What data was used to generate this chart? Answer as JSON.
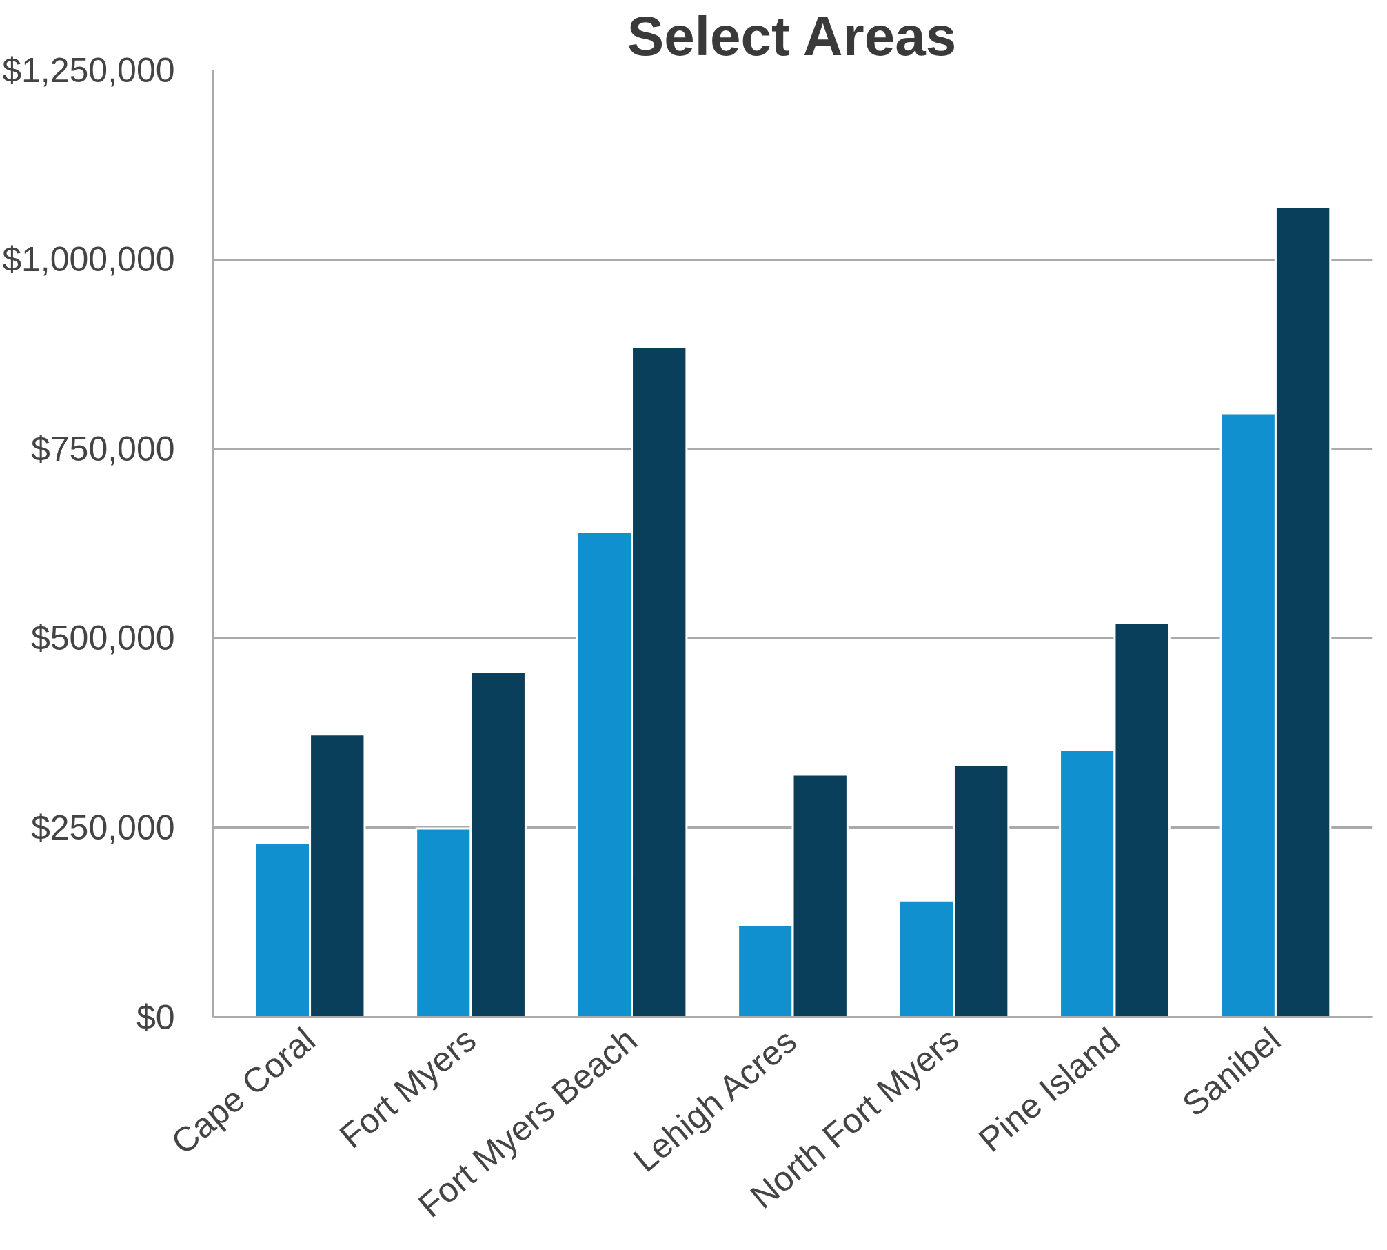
{
  "chart_data": {
    "type": "bar",
    "title": "Select Areas",
    "categories": [
      "Cape Coral",
      "Fort Myers",
      "Fort Myers Beach",
      "Lehigh Acres",
      "North Fort Myers",
      "Pine Island",
      "Sanibel"
    ],
    "series": [
      {
        "color": "#1190d0",
        "values": [
          230000,
          249000,
          641000,
          122000,
          154000,
          353000,
          797000
        ]
      },
      {
        "color": "#0a3f5c",
        "values": [
          373000,
          456000,
          885000,
          320000,
          333000,
          520000,
          1069000
        ]
      }
    ],
    "ylim": [
      0,
      1250000
    ],
    "yticks": [
      {
        "value": 0,
        "label": "$0"
      },
      {
        "value": 250000,
        "label": "$250,000"
      },
      {
        "value": 500000,
        "label": "$500,000"
      },
      {
        "value": 750000,
        "label": "$750,000"
      },
      {
        "value": 1000000,
        "label": "$1,000,000"
      },
      {
        "value": 1250000,
        "label": "$1,250,000"
      }
    ],
    "grid": "y"
  }
}
